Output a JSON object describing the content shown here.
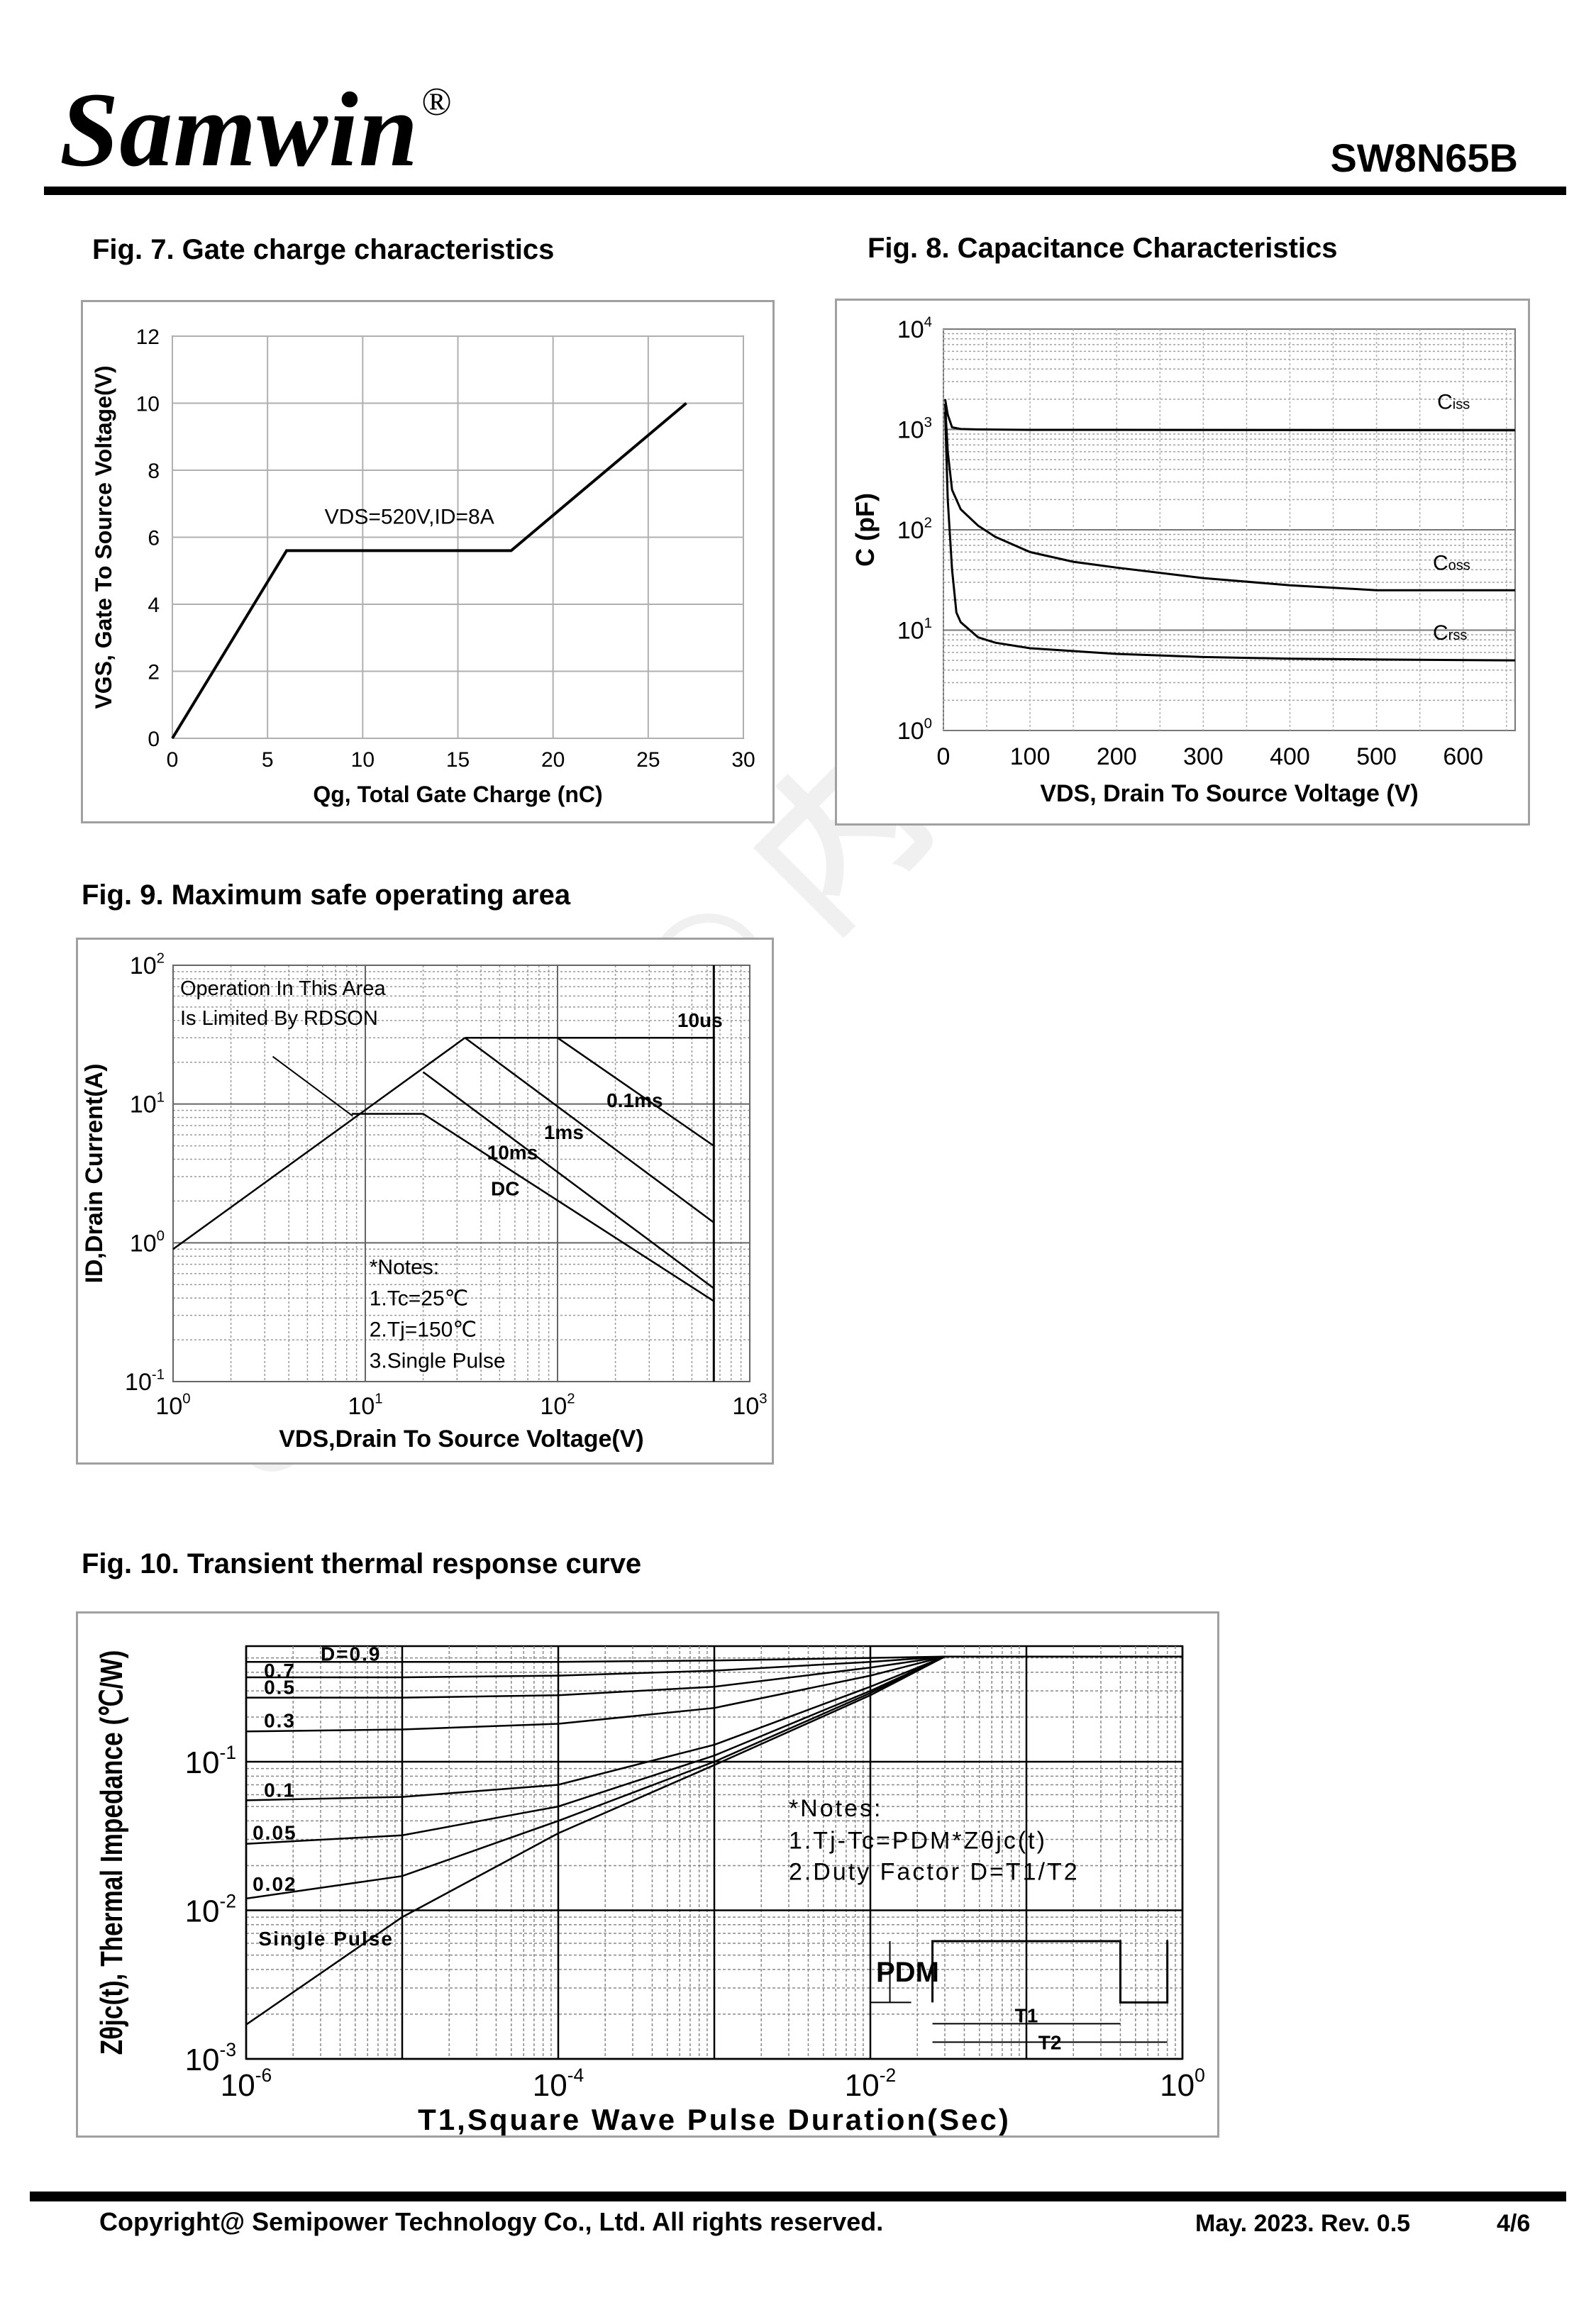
{
  "header": {
    "brand": "Samwin",
    "brand_mark": "®",
    "part_number": "SW8N65B"
  },
  "watermark": {
    "text": "Samwin® 内部保密"
  },
  "figures": {
    "fig7": {
      "title": "Fig. 7. Gate charge characteristics"
    },
    "fig8": {
      "title": "Fig. 8. Capacitance Characteristics"
    },
    "fig9": {
      "title": "Fig. 9. Maximum safe operating area"
    },
    "fig10": {
      "title": "Fig. 10. Transient thermal response curve"
    }
  },
  "footer": {
    "copyright": "Copyright@ Semipower Technology Co., Ltd. All rights reserved.",
    "date_rev": "May. 2023. Rev. 0.5",
    "page": "4/6"
  },
  "chart_data": [
    {
      "id": "fig7",
      "type": "line",
      "title": "Fig. 7. Gate charge characteristics",
      "xlabel": "Qg, Total Gate Charge (nC)",
      "ylabel": "VGS, Gate To Source Voltage(V)",
      "xlim": [
        0,
        30
      ],
      "ylim": [
        0,
        12
      ],
      "xticks": [
        0,
        5,
        10,
        15,
        20,
        25,
        30
      ],
      "yticks": [
        0,
        2,
        4,
        6,
        8,
        10,
        12
      ],
      "grid": true,
      "annotation": "VDS=520V,ID=8A",
      "series": [
        {
          "x": [
            0,
            6,
            17.8,
            27
          ],
          "y": [
            0,
            5.6,
            5.6,
            10
          ]
        }
      ]
    },
    {
      "id": "fig8",
      "type": "line",
      "title": "Fig. 8. Capacitance Characteristics",
      "xlabel": "VDS, Drain To Source Voltage (V)",
      "ylabel": "C (pF)",
      "xlim": [
        0,
        660
      ],
      "ylim": [
        1,
        10000
      ],
      "yscale": "log",
      "xticks": [
        0,
        100,
        200,
        300,
        400,
        500,
        600
      ],
      "grid": true,
      "series": [
        {
          "name": "Ciss",
          "x": [
            2,
            5,
            10,
            20,
            40,
            100,
            200,
            400,
            660
          ],
          "y": [
            2000,
            1400,
            1050,
            1010,
            1000,
            990,
            990,
            985,
            980
          ]
        },
        {
          "name": "Coss",
          "x": [
            2,
            5,
            10,
            20,
            40,
            60,
            100,
            150,
            200,
            300,
            400,
            500,
            660
          ],
          "y": [
            1800,
            600,
            250,
            160,
            110,
            85,
            60,
            48,
            42,
            33,
            28,
            25,
            25
          ]
        },
        {
          "name": "Crss",
          "x": [
            2,
            5,
            10,
            15,
            20,
            40,
            60,
            100,
            200,
            300,
            400,
            500,
            660
          ],
          "y": [
            1500,
            200,
            40,
            15,
            12,
            8.5,
            7.5,
            6.6,
            5.8,
            5.4,
            5.2,
            5.1,
            5
          ]
        }
      ]
    },
    {
      "id": "fig9",
      "type": "line",
      "title": "Fig. 9. Maximum safe operating area",
      "xlabel": "VDS,Drain To Source Voltage(V)",
      "ylabel": "ID,Drain Current(A)",
      "xlim": [
        1,
        1000
      ],
      "ylim": [
        0.1,
        100
      ],
      "xscale": "log",
      "yscale": "log",
      "grid": true,
      "annotations": [
        "Operation In This Area",
        "Is Limited By RDSON",
        "*Notes:",
        "1.Tc=25℃",
        "2.Tj=150℃",
        "3.Single Pulse"
      ],
      "series": [
        {
          "name": "RDSON limit",
          "x": [
            1,
            33
          ],
          "y": [
            0.9,
            30
          ]
        },
        {
          "name": "10us",
          "x": [
            33,
            650
          ],
          "y": [
            30,
            30
          ]
        },
        {
          "name": "0.1ms",
          "x": [
            33,
            100,
            650
          ],
          "y": [
            30,
            30,
            5
          ]
        },
        {
          "name": "1ms",
          "x": [
            33,
            650
          ],
          "y": [
            30,
            1.4
          ]
        },
        {
          "name": "10ms",
          "x": [
            20,
            650
          ],
          "y": [
            17,
            0.47
          ]
        },
        {
          "name": "DC",
          "x": [
            8.5,
            20,
            650
          ],
          "y": [
            8.5,
            8.5,
            0.38
          ]
        }
      ]
    },
    {
      "id": "fig10",
      "type": "line",
      "title": "Fig. 10. Transient thermal response curve",
      "xlabel": "T1,Square Wave Pulse Duration(Sec)",
      "ylabel": "Zθjc(t), Thermal Impedance (℃/W)",
      "xlim": [
        1e-06,
        1
      ],
      "ylim": [
        0.001,
        0.6
      ],
      "xscale": "log",
      "yscale": "log",
      "grid": true,
      "annotations": [
        "*Notes:",
        "1.Tj-Tc=PDM*Zθjc(t)",
        "2.Duty Factor D=T1/T2",
        "PDM",
        "T1",
        "T2"
      ],
      "series": [
        {
          "name": "D=0.9",
          "x": [
            1e-06,
            1e-05,
            0.0001,
            0.001,
            0.01,
            0.03,
            1
          ],
          "y": [
            0.47,
            0.47,
            0.47,
            0.48,
            0.5,
            0.51,
            0.51
          ]
        },
        {
          "name": "0.7",
          "x": [
            1e-06,
            1e-05,
            0.0001,
            0.001,
            0.01,
            0.03,
            1
          ],
          "y": [
            0.37,
            0.37,
            0.38,
            0.41,
            0.47,
            0.51,
            0.51
          ]
        },
        {
          "name": "0.5",
          "x": [
            1e-06,
            1e-05,
            0.0001,
            0.001,
            0.01,
            0.03,
            1
          ],
          "y": [
            0.27,
            0.27,
            0.28,
            0.32,
            0.43,
            0.51,
            0.51
          ]
        },
        {
          "name": "0.3",
          "x": [
            1e-06,
            1e-05,
            0.0001,
            0.001,
            0.01,
            0.03,
            1
          ],
          "y": [
            0.16,
            0.165,
            0.18,
            0.23,
            0.38,
            0.51,
            0.51
          ]
        },
        {
          "name": "0.1",
          "x": [
            1e-06,
            1e-05,
            0.0001,
            0.001,
            0.01,
            0.03,
            1
          ],
          "y": [
            0.055,
            0.058,
            0.07,
            0.13,
            0.32,
            0.51,
            0.51
          ]
        },
        {
          "name": "0.05",
          "x": [
            1e-06,
            1e-05,
            0.0001,
            0.001,
            0.01,
            0.03,
            1
          ],
          "y": [
            0.028,
            0.032,
            0.05,
            0.11,
            0.3,
            0.51,
            0.51
          ]
        },
        {
          "name": "0.02",
          "x": [
            1e-06,
            1e-05,
            0.0001,
            0.001,
            0.01,
            0.03,
            1
          ],
          "y": [
            0.012,
            0.017,
            0.04,
            0.1,
            0.29,
            0.51,
            0.51
          ]
        },
        {
          "name": "Single Pulse",
          "x": [
            1e-06,
            1e-05,
            0.0001,
            0.001,
            0.01,
            0.03,
            1
          ],
          "y": [
            0.0017,
            0.009,
            0.033,
            0.095,
            0.28,
            0.51,
            0.51
          ]
        }
      ]
    }
  ]
}
